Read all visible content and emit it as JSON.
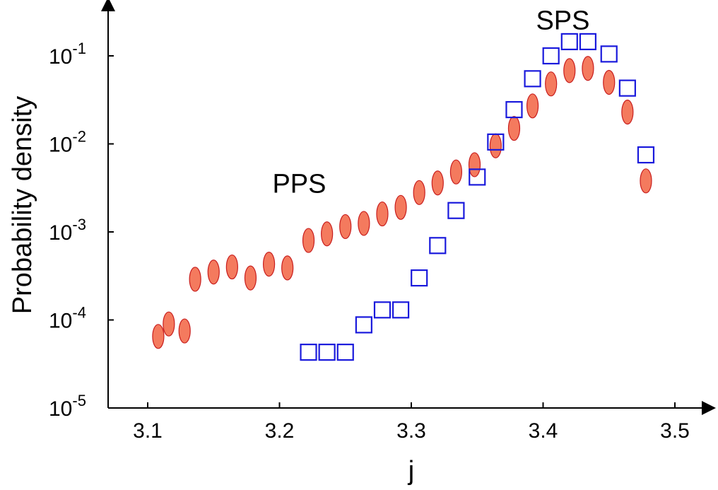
{
  "chart_data": {
    "type": "scatter",
    "xlabel": "j",
    "ylabel": "Probability density",
    "xlim": [
      3.08,
      3.52
    ],
    "ylim": [
      1e-05,
      0.5
    ],
    "yscale": "log",
    "xticks": [
      "3.1",
      "3.2",
      "3.3",
      "3.4",
      "3.5"
    ],
    "xtick_values": [
      3.1,
      3.2,
      3.3,
      3.4,
      3.5
    ],
    "yticks": [
      {
        "base": "10",
        "exp": "-5",
        "value": 1e-05
      },
      {
        "base": "10",
        "exp": "-4",
        "value": 0.0001
      },
      {
        "base": "10",
        "exp": "-3",
        "value": 0.001
      },
      {
        "base": "10",
        "exp": "-2",
        "value": 0.01
      },
      {
        "base": "10",
        "exp": "-1",
        "value": 0.1
      }
    ],
    "grid": false,
    "annotations": [
      {
        "text": "SPS",
        "x": 3.415,
        "y": 0.2
      },
      {
        "text": "PPS",
        "x": 3.215,
        "y": 0.0028
      }
    ],
    "series": [
      {
        "marker": "ellipse",
        "color": "#f47a5e",
        "edge_color": "#c81e1e",
        "x": [
          3.108,
          3.116,
          3.128,
          3.136,
          3.15,
          3.164,
          3.178,
          3.192,
          3.206,
          3.222,
          3.236,
          3.25,
          3.264,
          3.278,
          3.292,
          3.306,
          3.32,
          3.334,
          3.348,
          3.364,
          3.378,
          3.392,
          3.406,
          3.42,
          3.434,
          3.45,
          3.464,
          3.478
        ],
        "y": [
          6.5e-05,
          9e-05,
          7.5e-05,
          0.00029,
          0.00035,
          0.0004,
          0.0003,
          0.00043,
          0.00039,
          0.0008,
          0.00095,
          0.00115,
          0.00125,
          0.0016,
          0.0019,
          0.0028,
          0.0036,
          0.0048,
          0.0058,
          0.0095,
          0.015,
          0.027,
          0.048,
          0.068,
          0.072,
          0.05,
          0.023,
          0.0038
        ]
      },
      {
        "marker": "square",
        "color": "#1a1adc",
        "x": [
          3.222,
          3.236,
          3.25,
          3.264,
          3.278,
          3.292,
          3.306,
          3.32,
          3.334,
          3.35,
          3.364,
          3.378,
          3.392,
          3.406,
          3.42,
          3.434,
          3.45,
          3.464,
          3.478
        ],
        "y": [
          4.3e-05,
          4.3e-05,
          4.3e-05,
          8.8e-05,
          0.00013,
          0.00013,
          0.0003,
          0.0007,
          0.00175,
          0.0042,
          0.0105,
          0.0245,
          0.055,
          0.1,
          0.145,
          0.145,
          0.105,
          0.043,
          0.0075
        ]
      }
    ]
  }
}
